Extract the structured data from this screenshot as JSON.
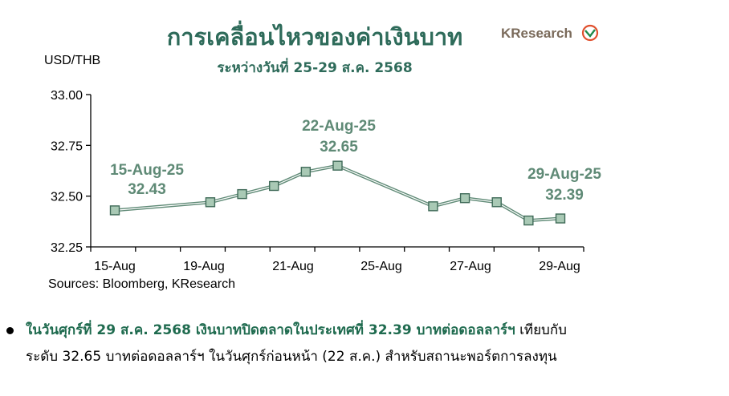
{
  "header": {
    "title": "การเคลื่อนไหวของค่าเงินบาท",
    "subtitle": "ระหว่างวันที่ 25-29 ส.ค. 2568",
    "brand": "KResearch"
  },
  "chart_data": {
    "type": "line",
    "title": "การเคลื่อนไหวของค่าเงินบาท",
    "subtitle": "ระหว่างวันที่ 25-29 ส.ค. 2568",
    "ylabel": "USD/THB",
    "xlabel": "",
    "ylim": [
      32.25,
      33.0
    ],
    "y_ticks": [
      "33.00",
      "32.75",
      "32.50",
      "32.25"
    ],
    "x_tick_labels": [
      "15-Aug",
      "19-Aug",
      "21-Aug",
      "25-Aug",
      "27-Aug",
      "29-Aug"
    ],
    "grid": false,
    "series": [
      {
        "x": [
          "2025-08-15",
          "2025-08-18",
          "2025-08-19",
          "2025-08-20",
          "2025-08-21",
          "2025-08-22",
          "2025-08-25",
          "2025-08-26",
          "2025-08-27",
          "2025-08-28",
          "2025-08-29"
        ],
        "values": [
          32.43,
          32.47,
          32.51,
          32.55,
          32.62,
          32.65,
          32.45,
          32.49,
          32.47,
          32.38,
          32.39
        ]
      }
    ],
    "annotations": [
      {
        "date": "15-Aug-25",
        "value": "32.43"
      },
      {
        "date": "22-Aug-25",
        "value": "32.65"
      },
      {
        "date": "29-Aug-25",
        "value": "32.39"
      }
    ],
    "source": "Sources: Bloomberg, KResearch",
    "line_color": "#5f8a76",
    "marker_fill": "#a9c9b5"
  },
  "bullet": {
    "bold_text": "ในวันศุกร์ที่ 29 ส.ค. 2568 เงินบาทปิดตลาดในประเทศที่ 32.39 บาทต่อดอลลาร์ฯ",
    "text_line1": " เทียบกับ",
    "text_line2": "ระดับ 32.65 บาทต่อดอลลาร์ฯ ในวันศุกร์ก่อนหน้า (22 ส.ค.) สำหรับสถานะพอร์ตการลงทุน"
  }
}
